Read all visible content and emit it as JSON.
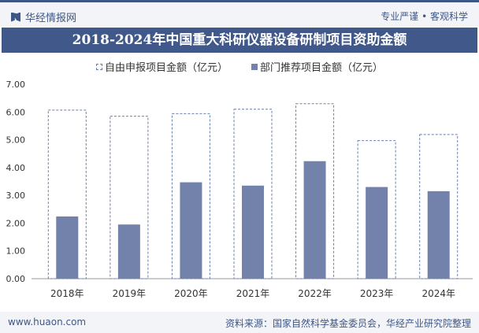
{
  "header": {
    "brand": "华经情报网",
    "slogan": "专业严谨 • 客观科学"
  },
  "footer": {
    "website": "www.huaon.com",
    "source": "资料来源：国家自然科学基金委员会，华经产业研究院整理"
  },
  "chart_data": {
    "type": "bar",
    "title": "2018-2024年中国重大科研仪器设备研制项目资助金额",
    "categories": [
      "2018年",
      "2019年",
      "2020年",
      "2021年",
      "2022年",
      "2023年",
      "2024年"
    ],
    "series": [
      {
        "name": "自由申报项目金额（亿元）",
        "values": [
          6.07,
          5.85,
          5.94,
          6.1,
          6.3,
          4.97,
          5.19
        ],
        "color": "#6a7fae",
        "style": "dashed-outline"
      },
      {
        "name": "部门推荐项目金额（亿元）",
        "values": [
          2.24,
          1.95,
          3.47,
          3.35,
          4.23,
          3.3,
          3.15
        ],
        "color": "#7382ab",
        "style": "solid"
      }
    ],
    "yticks": [
      "0.00",
      "1.00",
      "2.00",
      "3.00",
      "4.00",
      "5.00",
      "6.00",
      "7.00"
    ],
    "ylim": [
      0,
      7
    ],
    "legend": "top-center"
  }
}
